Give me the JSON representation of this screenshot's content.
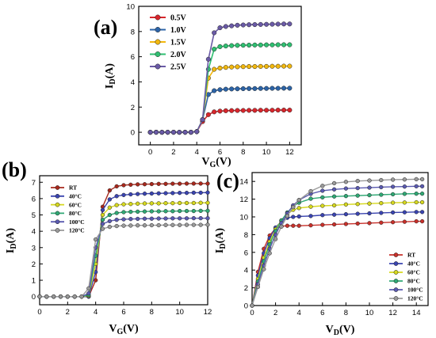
{
  "panels": [
    {
      "tag": "(a)"
    },
    {
      "tag": "(b)"
    },
    {
      "tag": "(c)"
    }
  ],
  "chart_data": [
    {
      "type": "line",
      "panel": "(a)",
      "xlabel_main": "V",
      "xlabel_sub": "G",
      "xlabel_unit": "(V)",
      "ylabel_main": "I",
      "ylabel_sub": "D",
      "ylabel_unit": "(A)",
      "xlim": [
        -1,
        13
      ],
      "ylim": [
        -1,
        10
      ],
      "xticks": [
        0,
        2,
        4,
        6,
        8,
        10,
        12
      ],
      "yticks": [
        0,
        2,
        4,
        6,
        8,
        10
      ],
      "legend_position": "top-left",
      "series": [
        {
          "name": "0.5V",
          "color": "#d8262c",
          "x": [
            0,
            0.5,
            1,
            1.5,
            2,
            2.5,
            3,
            3.5,
            4,
            4.5,
            5,
            5.5,
            6,
            6.5,
            7,
            7.5,
            8,
            8.5,
            9,
            9.5,
            10,
            10.5,
            11,
            11.5,
            12
          ],
          "y": [
            0,
            0,
            0,
            0,
            0,
            0,
            0,
            0,
            0.05,
            0.85,
            1.4,
            1.62,
            1.68,
            1.71,
            1.72,
            1.73,
            1.73,
            1.74,
            1.74,
            1.75,
            1.75,
            1.75,
            1.76,
            1.76,
            1.76
          ]
        },
        {
          "name": "1.0V",
          "color": "#2c64a8",
          "x": [
            0,
            0.5,
            1,
            1.5,
            2,
            2.5,
            3,
            3.5,
            4,
            4.5,
            5,
            5.5,
            6,
            6.5,
            7,
            7.5,
            8,
            8.5,
            9,
            9.5,
            10,
            10.5,
            11,
            11.5,
            12
          ],
          "y": [
            0,
            0,
            0,
            0,
            0,
            0,
            0,
            0,
            0.05,
            1.0,
            3.0,
            3.3,
            3.38,
            3.42,
            3.44,
            3.45,
            3.46,
            3.47,
            3.47,
            3.48,
            3.48,
            3.49,
            3.49,
            3.5,
            3.5
          ]
        },
        {
          "name": "1.5V",
          "color": "#f2b80f",
          "x": [
            0,
            0.5,
            1,
            1.5,
            2,
            2.5,
            3,
            3.5,
            4,
            4.5,
            5,
            5.5,
            6,
            6.5,
            7,
            7.5,
            8,
            8.5,
            9,
            9.5,
            10,
            10.5,
            11,
            11.5,
            12
          ],
          "y": [
            0,
            0,
            0,
            0,
            0,
            0,
            0,
            0,
            0.05,
            1.0,
            4.3,
            5.0,
            5.1,
            5.15,
            5.18,
            5.2,
            5.21,
            5.22,
            5.22,
            5.23,
            5.23,
            5.24,
            5.24,
            5.25,
            5.25
          ]
        },
        {
          "name": "2.0V",
          "color": "#2fbf71",
          "x": [
            0,
            0.5,
            1,
            1.5,
            2,
            2.5,
            3,
            3.5,
            4,
            4.5,
            5,
            5.5,
            6,
            6.5,
            7,
            7.5,
            8,
            8.5,
            9,
            9.5,
            10,
            10.5,
            11,
            11.5,
            12
          ],
          "y": [
            0,
            0,
            0,
            0,
            0,
            0,
            0,
            0,
            0.05,
            1.0,
            5.0,
            6.6,
            6.8,
            6.85,
            6.88,
            6.9,
            6.91,
            6.92,
            6.93,
            6.93,
            6.94,
            6.94,
            6.95,
            6.95,
            6.95
          ]
        },
        {
          "name": "2.5V",
          "color": "#6a5aa6",
          "x": [
            0,
            0.5,
            1,
            1.5,
            2,
            2.5,
            3,
            3.5,
            4,
            4.5,
            5,
            5.5,
            6,
            6.5,
            7,
            7.5,
            8,
            8.5,
            9,
            9.5,
            10,
            10.5,
            11,
            11.5,
            12
          ],
          "y": [
            0,
            0,
            0,
            0,
            0,
            0,
            0,
            0,
            0.05,
            1.0,
            5.8,
            7.9,
            8.3,
            8.4,
            8.45,
            8.5,
            8.52,
            8.54,
            8.55,
            8.56,
            8.57,
            8.58,
            8.59,
            8.6,
            8.6
          ]
        }
      ]
    },
    {
      "type": "line",
      "panel": "(b)",
      "xlabel_main": "V",
      "xlabel_sub": "G",
      "xlabel_unit": "(V)",
      "ylabel_main": "I",
      "ylabel_sub": "D",
      "ylabel_unit": "(A)",
      "xlim": [
        0,
        12
      ],
      "ylim": [
        -0.5,
        7.4
      ],
      "xticks": [
        0,
        2,
        4,
        6,
        8,
        10,
        12
      ],
      "yticks": [
        0,
        1,
        2,
        3,
        4,
        5,
        6,
        7
      ],
      "legend_position": "top-left",
      "series": [
        {
          "name": "RT",
          "color": "#a8281c",
          "x": [
            0,
            0.5,
            1,
            1.5,
            2,
            2.5,
            3,
            3.5,
            4,
            4.5,
            5,
            5.5,
            6,
            6.5,
            7,
            7.5,
            8,
            8.5,
            9,
            9.5,
            10,
            10.5,
            11,
            11.5,
            12
          ],
          "y": [
            0,
            0,
            0,
            0,
            0,
            0,
            0,
            0,
            1.0,
            5.5,
            6.5,
            6.75,
            6.82,
            6.85,
            6.87,
            6.88,
            6.89,
            6.9,
            6.9,
            6.91,
            6.91,
            6.92,
            6.92,
            6.92,
            6.92
          ]
        },
        {
          "name": "40°C",
          "color": "#3a44b0",
          "x": [
            0,
            0.5,
            1,
            1.5,
            2,
            2.5,
            3,
            3.5,
            4,
            4.5,
            5,
            5.5,
            6,
            6.5,
            7,
            7.5,
            8,
            8.5,
            9,
            9.5,
            10,
            10.5,
            11,
            11.5,
            12
          ],
          "y": [
            0,
            0,
            0,
            0,
            0,
            0,
            0,
            0,
            1.5,
            5.3,
            5.95,
            6.15,
            6.22,
            6.26,
            6.28,
            6.3,
            6.31,
            6.32,
            6.33,
            6.34,
            6.35,
            6.35,
            6.36,
            6.36,
            6.37
          ]
        },
        {
          "name": "60°C",
          "color": "#d6d81e",
          "x": [
            0,
            0.5,
            1,
            1.5,
            2,
            2.5,
            3,
            3.5,
            4,
            4.5,
            5,
            5.5,
            6,
            6.5,
            7,
            7.5,
            8,
            8.5,
            9,
            9.5,
            10,
            10.5,
            11,
            11.5,
            12
          ],
          "y": [
            0,
            0,
            0,
            0,
            0,
            0,
            0,
            0.05,
            2.0,
            5.0,
            5.45,
            5.6,
            5.65,
            5.67,
            5.69,
            5.7,
            5.71,
            5.71,
            5.72,
            5.72,
            5.73,
            5.73,
            5.73,
            5.74,
            5.74
          ]
        },
        {
          "name": "80°C",
          "color": "#2fa874",
          "x": [
            0,
            0.5,
            1,
            1.5,
            2,
            2.5,
            3,
            3.5,
            4,
            4.5,
            5,
            5.5,
            6,
            6.5,
            7,
            7.5,
            8,
            8.5,
            9,
            9.5,
            10,
            10.5,
            11,
            11.5,
            12
          ],
          "y": [
            0,
            0,
            0,
            0,
            0,
            0,
            0,
            0.1,
            2.5,
            4.7,
            5.0,
            5.12,
            5.17,
            5.19,
            5.2,
            5.21,
            5.22,
            5.22,
            5.23,
            5.23,
            5.24,
            5.24,
            5.24,
            5.25,
            5.25
          ]
        },
        {
          "name": "100°C",
          "color": "#5a5ab0",
          "x": [
            0,
            0.5,
            1,
            1.5,
            2,
            2.5,
            3,
            3.5,
            4,
            4.5,
            5,
            5.5,
            6,
            6.5,
            7,
            7.5,
            8,
            8.5,
            9,
            9.5,
            10,
            10.5,
            11,
            11.5,
            12
          ],
          "y": [
            0,
            0,
            0,
            0,
            0,
            0,
            0,
            0.2,
            3.0,
            4.45,
            4.62,
            4.7,
            4.73,
            4.75,
            4.76,
            4.77,
            4.77,
            4.78,
            4.78,
            4.79,
            4.79,
            4.79,
            4.8,
            4.8,
            4.8
          ]
        },
        {
          "name": "120°C",
          "color": "#9a9a9a",
          "x": [
            0,
            0.5,
            1,
            1.5,
            2,
            2.5,
            3,
            3.5,
            4,
            4.5,
            5,
            5.5,
            6,
            6.5,
            7,
            7.5,
            8,
            8.5,
            9,
            9.5,
            10,
            10.5,
            11,
            11.5,
            12
          ],
          "y": [
            0,
            0,
            0,
            0,
            0,
            0,
            0,
            0.5,
            3.5,
            4.15,
            4.27,
            4.32,
            4.34,
            4.35,
            4.36,
            4.36,
            4.37,
            4.37,
            4.38,
            4.38,
            4.38,
            4.39,
            4.39,
            4.39,
            4.4
          ]
        }
      ]
    },
    {
      "type": "line",
      "panel": "(c)",
      "xlabel_main": "V",
      "xlabel_sub": "D",
      "xlabel_unit": "(V)",
      "ylabel_main": "I",
      "ylabel_sub": "D",
      "ylabel_unit": "(A)",
      "xlim": [
        0,
        15
      ],
      "ylim": [
        0,
        15
      ],
      "xticks": [
        0,
        2,
        4,
        6,
        8,
        10,
        12,
        14
      ],
      "yticks": [
        0,
        2,
        4,
        6,
        8,
        10,
        12,
        14
      ],
      "legend_position": "bottom-right",
      "series": [
        {
          "name": "RT",
          "color": "#c8302a",
          "x": [
            0,
            0.5,
            1,
            1.5,
            2,
            2.5,
            3,
            3.5,
            4,
            5,
            6,
            7,
            8,
            9,
            10,
            11,
            12,
            13,
            14,
            14.5
          ],
          "y": [
            0,
            3.8,
            6.4,
            7.9,
            8.7,
            8.95,
            9.0,
            9.0,
            9.0,
            9.05,
            9.1,
            9.15,
            9.2,
            9.25,
            9.3,
            9.35,
            9.4,
            9.45,
            9.5,
            9.5
          ]
        },
        {
          "name": "40°C",
          "color": "#3a44b0",
          "x": [
            0,
            0.5,
            1,
            1.5,
            2,
            2.5,
            3,
            3.5,
            4,
            5,
            6,
            7,
            8,
            9,
            10,
            11,
            12,
            13,
            14,
            14.5
          ],
          "y": [
            0,
            3.4,
            5.9,
            7.6,
            8.8,
            9.5,
            9.9,
            10.0,
            10.05,
            10.1,
            10.2,
            10.25,
            10.3,
            10.35,
            10.4,
            10.45,
            10.5,
            10.52,
            10.55,
            10.55
          ]
        },
        {
          "name": "60°C",
          "color": "#d6d81e",
          "x": [
            0,
            0.5,
            1,
            1.5,
            2,
            2.5,
            3,
            3.5,
            4,
            5,
            6,
            7,
            8,
            9,
            10,
            11,
            12,
            13,
            14,
            14.5
          ],
          "y": [
            0,
            3.0,
            5.4,
            7.2,
            8.6,
            9.6,
            10.3,
            10.8,
            11.0,
            11.15,
            11.25,
            11.3,
            11.4,
            11.45,
            11.5,
            11.55,
            11.6,
            11.62,
            11.65,
            11.65
          ]
        },
        {
          "name": "80°C",
          "color": "#2fa874",
          "x": [
            0,
            0.5,
            1,
            1.5,
            2,
            2.5,
            3,
            3.5,
            4,
            5,
            6,
            7,
            8,
            9,
            10,
            11,
            12,
            13,
            14,
            14.5
          ],
          "y": [
            0,
            2.7,
            5.0,
            6.9,
            8.4,
            9.6,
            10.5,
            11.2,
            11.6,
            12.05,
            12.2,
            12.3,
            12.35,
            12.4,
            12.45,
            12.5,
            12.55,
            12.6,
            12.62,
            12.62
          ]
        },
        {
          "name": "100°C",
          "color": "#5a5ab0",
          "x": [
            0,
            0.5,
            1,
            1.5,
            2,
            2.5,
            3,
            3.5,
            4,
            5,
            6,
            7,
            8,
            9,
            10,
            11,
            12,
            13,
            14,
            14.5
          ],
          "y": [
            0,
            2.4,
            4.5,
            6.4,
            8.0,
            9.3,
            10.4,
            11.3,
            11.9,
            12.6,
            12.95,
            13.1,
            13.2,
            13.25,
            13.3,
            13.35,
            13.4,
            13.42,
            13.45,
            13.45
          ]
        },
        {
          "name": "120°C",
          "color": "#9a9a9a",
          "x": [
            0,
            0.5,
            1,
            1.5,
            2,
            2.5,
            3,
            3.5,
            4,
            5,
            6,
            7,
            8,
            9,
            10,
            11,
            12,
            13,
            14,
            14.5
          ],
          "y": [
            0,
            2.1,
            4.1,
            5.9,
            7.5,
            8.9,
            10.1,
            11.1,
            11.9,
            12.9,
            13.5,
            13.8,
            13.95,
            14.05,
            14.1,
            14.15,
            14.2,
            14.22,
            14.25,
            14.25
          ]
        }
      ]
    }
  ]
}
